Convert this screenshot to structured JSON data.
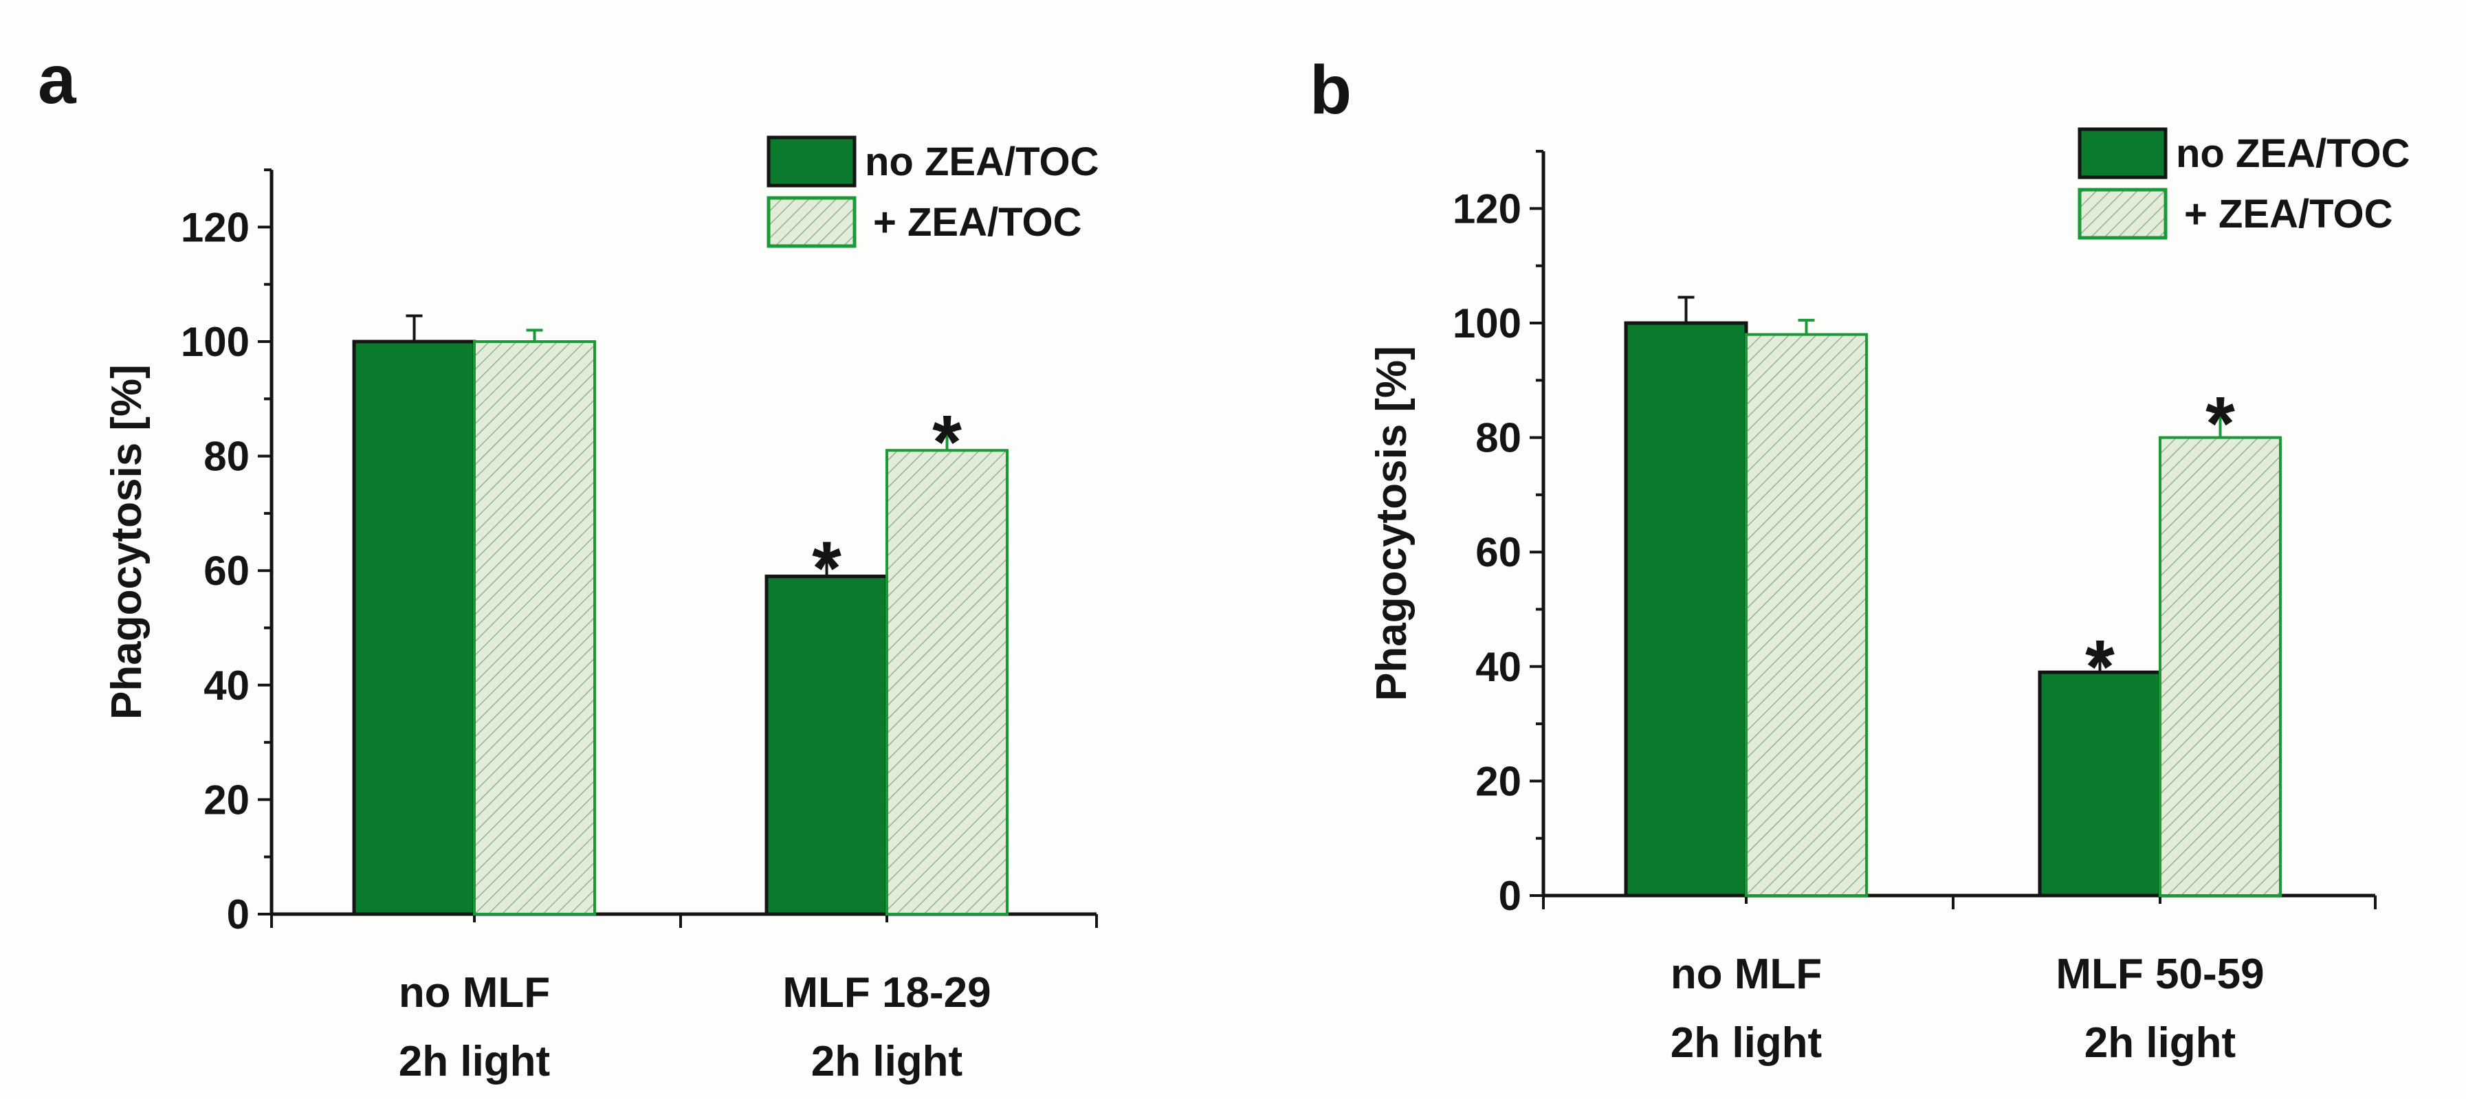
{
  "colors": {
    "dark_bar": "#0b7a2c",
    "hatch_fill": "#e2ecd9",
    "hatch_line": "#8fb48f",
    "hatch_edge": "#1a9a36",
    "axis": "#141414"
  },
  "chart_data": [
    {
      "panel": "a",
      "type": "bar",
      "ylabel": "Phagocytosis [%]",
      "ylim": [
        0,
        130
      ],
      "yticks": [
        0,
        20,
        40,
        60,
        80,
        100,
        120
      ],
      "grid": false,
      "legend_position": "top-right",
      "categories": [
        {
          "line1": "no MLF",
          "line2": "2h light"
        },
        {
          "line1": "MLF 18-29",
          "line2": "2h light"
        }
      ],
      "series": [
        {
          "name": "no ZEA/TOC",
          "style": "solid",
          "values": [
            100,
            59
          ],
          "errors": [
            4.5,
            3.5
          ],
          "significant": [
            false,
            true
          ]
        },
        {
          "name": "+ ZEA/TOC",
          "style": "hatched",
          "values": [
            100,
            81
          ],
          "errors": [
            2,
            3.5
          ],
          "significant": [
            false,
            true
          ]
        }
      ],
      "significance_marker": "*"
    },
    {
      "panel": "b",
      "type": "bar",
      "ylabel": "Phagocytosis [%]",
      "ylim": [
        0,
        130
      ],
      "yticks": [
        0,
        20,
        40,
        60,
        80,
        100,
        120
      ],
      "grid": false,
      "legend_position": "top-right",
      "categories": [
        {
          "line1": "no MLF",
          "line2": "2h light"
        },
        {
          "line1": "MLF 50-59",
          "line2": "2h light"
        }
      ],
      "series": [
        {
          "name": "no ZEA/TOC",
          "style": "solid",
          "values": [
            100,
            39
          ],
          "errors": [
            4.5,
            3
          ],
          "significant": [
            false,
            true
          ]
        },
        {
          "name": "+ ZEA/TOC",
          "style": "hatched",
          "values": [
            98,
            80
          ],
          "errors": [
            2.5,
            4.5
          ],
          "significant": [
            false,
            true
          ]
        }
      ],
      "significance_marker": "*"
    }
  ]
}
